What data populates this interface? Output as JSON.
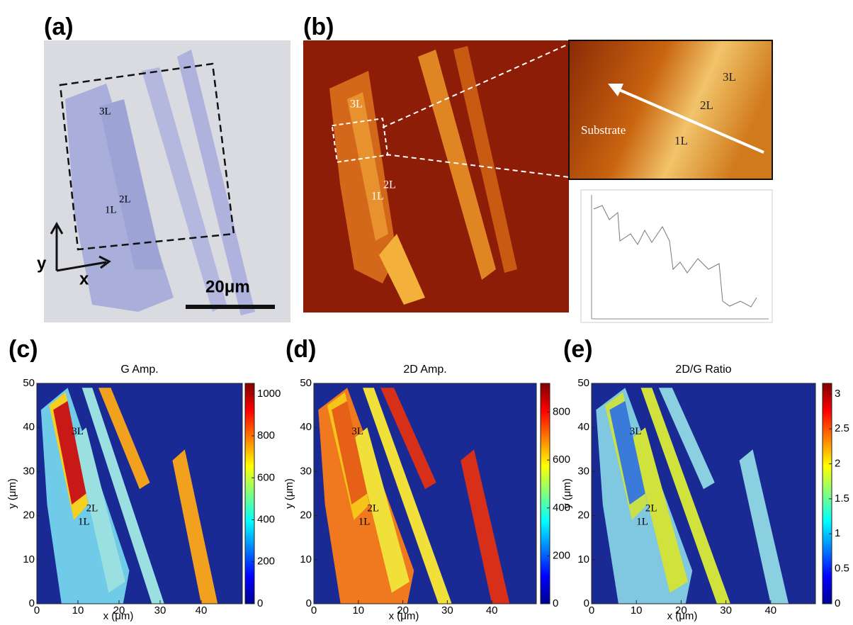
{
  "panels": {
    "a": {
      "label": "(a)",
      "annotations": [
        "3L",
        "2L",
        "1L"
      ],
      "axis_labels": {
        "x": "x",
        "y": "y"
      },
      "scale_bar": "20μm"
    },
    "b": {
      "label": "(b)",
      "annotations": [
        "3L",
        "2L",
        "1L"
      ],
      "inset_annotations": [
        "Substrate",
        "1L",
        "2L",
        "3L"
      ]
    }
  },
  "chart_data": [
    {
      "type": "heatmap",
      "panel_label": "(c)",
      "title": "G Amp.",
      "x_label": "x (μm)",
      "y_label": "y (μm)",
      "xlim": [
        0,
        50
      ],
      "ylim": [
        0,
        50
      ],
      "xticks": [
        0,
        10,
        20,
        30,
        40
      ],
      "yticks": [
        0,
        10,
        20,
        30,
        40,
        50
      ],
      "colorbar": {
        "lim": [
          0,
          1050
        ],
        "ticks": [
          0,
          200,
          400,
          600,
          800,
          1000
        ]
      },
      "annotations": [
        "3L",
        "2L",
        "1L"
      ]
    },
    {
      "type": "heatmap",
      "panel_label": "(d)",
      "title": "2D Amp.",
      "x_label": "x (μm)",
      "y_label": "y (μm)",
      "xlim": [
        0,
        50
      ],
      "ylim": [
        0,
        50
      ],
      "xticks": [
        0,
        10,
        20,
        30,
        40
      ],
      "yticks": [
        0,
        10,
        20,
        30,
        40,
        50
      ],
      "colorbar": {
        "lim": [
          0,
          920
        ],
        "ticks": [
          0,
          200,
          400,
          600,
          800
        ]
      },
      "annotations": [
        "3L",
        "2L",
        "1L"
      ]
    },
    {
      "type": "heatmap",
      "panel_label": "(e)",
      "title": "2D/G Ratio",
      "x_label": "x (μm)",
      "y_label": "y (μm)",
      "xlim": [
        0,
        50
      ],
      "ylim": [
        0,
        50
      ],
      "xticks": [
        0,
        10,
        20,
        30,
        40
      ],
      "yticks": [
        0,
        10,
        20,
        30,
        40,
        50
      ],
      "colorbar": {
        "lim": [
          0,
          3.15
        ],
        "ticks": [
          0,
          0.5,
          1,
          1.5,
          2,
          2.5,
          3
        ]
      },
      "annotations": [
        "3L",
        "2L",
        "1L"
      ]
    }
  ]
}
